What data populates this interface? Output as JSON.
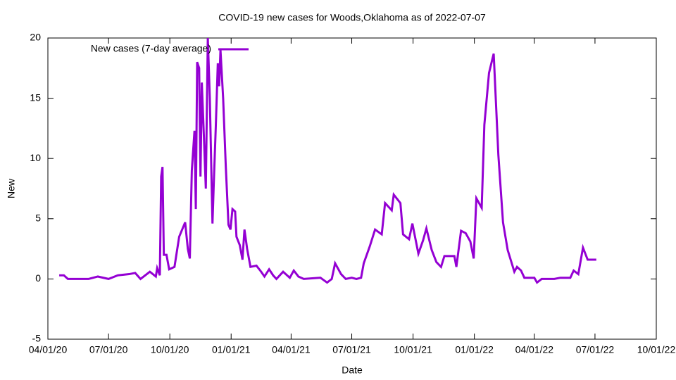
{
  "chart_data": {
    "type": "line",
    "title": "COVID-19 new cases for Woods,Oklahoma as of 2022-07-07",
    "x_label": "Date",
    "y_label": "New",
    "x": [
      "2020-04-18",
      "2020-04-25",
      "2020-05-01",
      "2020-06-01",
      "2020-06-15",
      "2020-07-01",
      "2020-07-15",
      "2020-08-01",
      "2020-08-10",
      "2020-08-18",
      "2020-09-01",
      "2020-09-10",
      "2020-09-12",
      "2020-09-16",
      "2020-09-18",
      "2020-09-20",
      "2020-09-22",
      "2020-09-26",
      "2020-09-30",
      "2020-10-08",
      "2020-10-15",
      "2020-10-24",
      "2020-10-28",
      "2020-10-31",
      "2020-11-03",
      "2020-11-07",
      "2020-11-09",
      "2020-11-11",
      "2020-11-14",
      "2020-11-16",
      "2020-11-18",
      "2020-11-21",
      "2020-11-24",
      "2020-11-27",
      "2020-11-30",
      "2020-12-04",
      "2020-12-06",
      "2020-12-09",
      "2020-12-12",
      "2020-12-14",
      "2020-12-16",
      "2020-12-20",
      "2020-12-24",
      "2020-12-28",
      "2020-12-31",
      "2021-01-03",
      "2021-01-07",
      "2021-01-09",
      "2021-01-14",
      "2021-01-18",
      "2021-01-21",
      "2021-01-25",
      "2021-01-30",
      "2021-02-08",
      "2021-02-15",
      "2021-02-20",
      "2021-02-27",
      "2021-03-05",
      "2021-03-10",
      "2021-03-20",
      "2021-03-30",
      "2021-04-05",
      "2021-04-12",
      "2021-04-20",
      "2021-05-15",
      "2021-05-25",
      "2021-06-01",
      "2021-06-06",
      "2021-06-15",
      "2021-06-22",
      "2021-07-01",
      "2021-07-08",
      "2021-07-15",
      "2021-07-19",
      "2021-07-28",
      "2021-08-05",
      "2021-08-15",
      "2021-08-20",
      "2021-08-30",
      "2021-09-02",
      "2021-09-12",
      "2021-09-16",
      "2021-09-25",
      "2021-09-30",
      "2021-10-09",
      "2021-10-16",
      "2021-10-21",
      "2021-10-29",
      "2021-11-05",
      "2021-11-12",
      "2021-11-17",
      "2021-12-02",
      "2021-12-05",
      "2021-12-12",
      "2021-12-19",
      "2021-12-26",
      "2021-12-31",
      "2022-01-04",
      "2022-01-12",
      "2022-01-16",
      "2022-01-23",
      "2022-01-30",
      "2022-02-06",
      "2022-02-13",
      "2022-02-20",
      "2022-03-02",
      "2022-03-06",
      "2022-03-12",
      "2022-03-17",
      "2022-04-01",
      "2022-04-05",
      "2022-04-12",
      "2022-05-01",
      "2022-05-10",
      "2022-05-25",
      "2022-05-30",
      "2022-06-06",
      "2022-06-13",
      "2022-06-20",
      "2022-07-03"
    ],
    "series": [
      {
        "name": "New cases (7-day average)",
        "color": "#9400d3",
        "values": [
          0.3,
          0.3,
          0,
          0,
          0.2,
          0,
          0.3,
          0.4,
          0.5,
          0,
          0.6,
          0.2,
          0.9,
          0.3,
          8.5,
          9.3,
          2.0,
          2.0,
          0.8,
          1.0,
          3.5,
          4.7,
          2.5,
          1.7,
          9.0,
          12.3,
          5.8,
          18,
          17.5,
          8.5,
          16.3,
          12,
          7.5,
          20,
          15,
          4.6,
          8,
          12.7,
          17.9,
          16,
          19,
          15,
          9.3,
          4.5,
          4.1,
          5.8,
          5.6,
          3.5,
          2.8,
          1.6,
          4.1,
          2.5,
          1.0,
          1.1,
          0.6,
          0.2,
          0.8,
          0.3,
          0,
          0.6,
          0.1,
          0.7,
          0.2,
          0,
          0.1,
          -0.3,
          0,
          1.3,
          0.4,
          0,
          0.1,
          0,
          0.1,
          1.3,
          2.7,
          4.1,
          3.7,
          6.3,
          5.7,
          7.0,
          6.3,
          3.7,
          3.3,
          4.6,
          2.1,
          3.2,
          4.2,
          2.4,
          1.4,
          1.0,
          1.9,
          1.9,
          1.0,
          4.0,
          3.8,
          3.1,
          1.7,
          6.7,
          5.9,
          12.8,
          17.1,
          18.7,
          10.3,
          4.7,
          2.4,
          0.6,
          1.0,
          0.7,
          0.1,
          0.1,
          -0.3,
          0,
          0,
          0.1,
          0.1,
          0.7,
          0.4,
          2.6,
          1.6,
          1.6
        ]
      }
    ],
    "xlim": [
      "2020-04-01",
      "2022-10-01"
    ],
    "xticks": [
      {
        "value": "2020-04-01",
        "label": "04/01/20"
      },
      {
        "value": "2020-07-01",
        "label": "07/01/20"
      },
      {
        "value": "2020-10-01",
        "label": "10/01/20"
      },
      {
        "value": "2021-01-01",
        "label": "01/01/21"
      },
      {
        "value": "2021-04-01",
        "label": "04/01/21"
      },
      {
        "value": "2021-07-01",
        "label": "07/01/21"
      },
      {
        "value": "2021-10-01",
        "label": "10/01/21"
      },
      {
        "value": "2022-01-01",
        "label": "01/01/22"
      },
      {
        "value": "2022-04-01",
        "label": "04/01/22"
      },
      {
        "value": "2022-07-01",
        "label": "07/01/22"
      },
      {
        "value": "2022-10-01",
        "label": "10/01/22"
      }
    ],
    "ylim": [
      -5,
      20
    ],
    "yticks": [
      -5,
      0,
      5,
      10,
      15,
      20
    ],
    "grid": false,
    "legend": "top-left"
  }
}
